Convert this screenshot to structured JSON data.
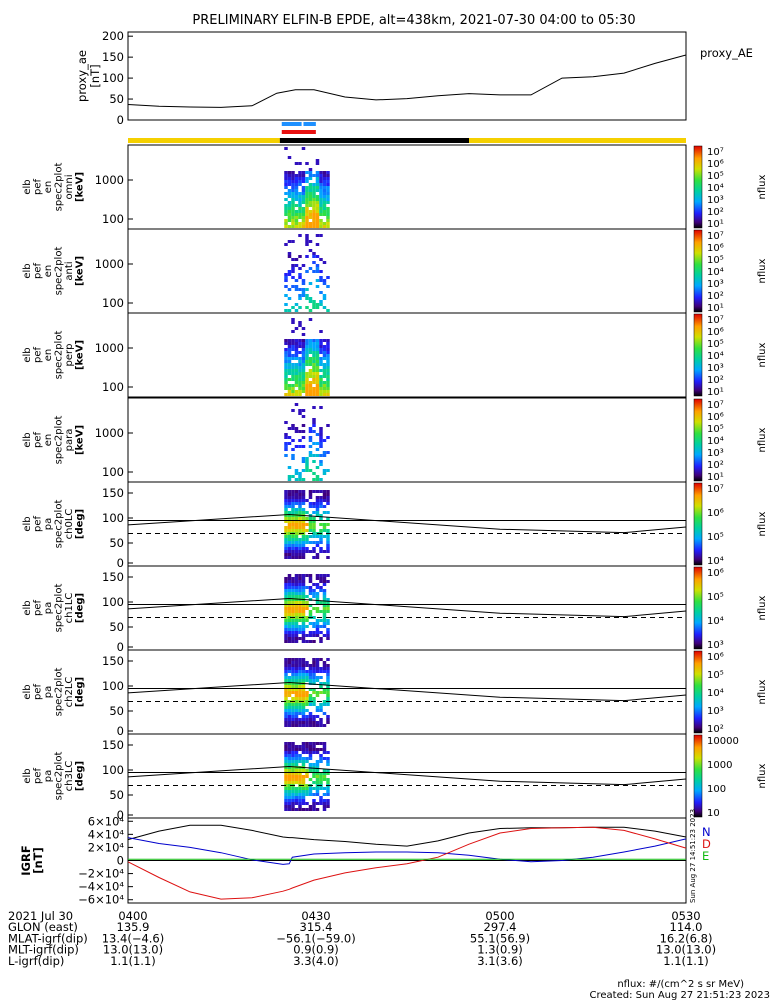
{
  "title": "PRELIMINARY ELFIN-B EPDE, alt=438km, 2021-07-30 04:00 to 05:30",
  "colors": {
    "state_yellow": "#f5d000",
    "state_black": "#000000",
    "bar_blue": "#1e90ff",
    "bar_red": "#e81010",
    "igrf_N": "#0000cc",
    "igrf_D": "#dd1111",
    "igrf_E": "#11bb11"
  },
  "chart_data": [
    {
      "type": "line",
      "panel": "proxy_ae",
      "ylabel_lines": [
        "proxy_ae",
        "[nT]"
      ],
      "legend": "proxy_AE",
      "ylim": [
        0,
        210
      ],
      "yticks": [
        "200",
        "150",
        "100",
        "50",
        "0"
      ],
      "ytick_values": [
        200,
        150,
        100,
        50,
        0
      ],
      "x_minutes": [
        0,
        5,
        10,
        15,
        20,
        24,
        27,
        30,
        35,
        40,
        45,
        50,
        55,
        60,
        65,
        70,
        75,
        80,
        85,
        90
      ],
      "y": [
        37,
        33,
        31,
        30,
        34,
        64,
        72,
        72,
        55,
        48,
        51,
        58,
        63,
        60,
        60,
        100,
        103,
        112,
        135,
        155
      ]
    },
    {
      "type": "heatmap",
      "panel": "spec_omni",
      "ylabel_lines": [
        "elb",
        "pef",
        "en",
        "spec2plot",
        "omni",
        "[keV]"
      ],
      "yticks": [
        "1000",
        "100"
      ],
      "cbar_ticks": [
        "10⁷",
        "10⁶",
        "10⁵",
        "10⁴",
        "10³",
        "10²",
        "10¹"
      ],
      "cbar_label": "nflux"
    },
    {
      "type": "heatmap",
      "panel": "spec_anti",
      "ylabel_lines": [
        "elb",
        "pef",
        "en",
        "spec2plot",
        "anti",
        "[keV]"
      ],
      "yticks": [
        "1000",
        "100"
      ],
      "cbar_ticks": [
        "10⁷",
        "10⁶",
        "10⁵",
        "10⁴",
        "10³",
        "10²",
        "10¹"
      ],
      "cbar_label": "nflux"
    },
    {
      "type": "heatmap",
      "panel": "spec_perp",
      "ylabel_lines": [
        "elb",
        "pef",
        "en",
        "spec2plot",
        "perp",
        "[keV]"
      ],
      "yticks": [
        "1000",
        "100"
      ],
      "cbar_ticks": [
        "10⁷",
        "10⁶",
        "10⁵",
        "10⁴",
        "10³",
        "10²",
        "10¹"
      ],
      "cbar_label": "nflux"
    },
    {
      "type": "heatmap",
      "panel": "spec_para",
      "ylabel_lines": [
        "elb",
        "pef",
        "en",
        "spec2plot",
        "para",
        "[keV]"
      ],
      "yticks": [
        "1000",
        "100"
      ],
      "cbar_ticks": [
        "10⁷",
        "10⁶",
        "10⁵",
        "10⁴",
        "10³",
        "10²",
        "10¹"
      ],
      "cbar_label": "nflux"
    },
    {
      "type": "heatmap",
      "panel": "ch0LC",
      "ylabel_lines": [
        "elb",
        "pef",
        "pa",
        "spec2plot",
        "ch0LC",
        "[deg]"
      ],
      "yticks": [
        "150",
        "100",
        "50",
        "0"
      ],
      "cbar_ticks": [
        "10⁷",
        "10⁶",
        "10⁵",
        "10⁴"
      ],
      "cbar_label": "nflux"
    },
    {
      "type": "heatmap",
      "panel": "ch1LC",
      "ylabel_lines": [
        "elb",
        "pef",
        "pa",
        "spec2plot",
        "ch1LC",
        "[deg]"
      ],
      "yticks": [
        "150",
        "100",
        "50",
        "0"
      ],
      "cbar_ticks": [
        "10⁶",
        "10⁵",
        "10⁴",
        "10³"
      ],
      "cbar_label": "nflux"
    },
    {
      "type": "heatmap",
      "panel": "ch2LC",
      "ylabel_lines": [
        "elb",
        "pef",
        "pa",
        "spec2plot",
        "ch2LC",
        "[deg]"
      ],
      "yticks": [
        "150",
        "100",
        "50",
        "0"
      ],
      "cbar_ticks": [
        "10⁶",
        "10⁵",
        "10⁴",
        "10³",
        "10²"
      ],
      "cbar_label": "nflux"
    },
    {
      "type": "heatmap",
      "panel": "ch3LC",
      "ylabel_lines": [
        "elb",
        "pef",
        "pa",
        "spec2plot",
        "ch3LC",
        "[deg]"
      ],
      "yticks": [
        "150",
        "100",
        "50",
        "0"
      ],
      "cbar_ticks": [
        "10000",
        "1000",
        "100",
        "10"
      ],
      "cbar_label": "nflux"
    },
    {
      "type": "line",
      "panel": "igrf",
      "ylabel_lines": [
        "IGRF",
        "[nT]"
      ],
      "ylim": [
        -65000,
        65000
      ],
      "yticks": [
        "6×10⁴",
        "4×10⁴",
        "2×10⁴",
        "0",
        "−2×10⁴",
        "−4×10⁴",
        "−6×10⁴"
      ],
      "ytick_values": [
        60000,
        40000,
        20000,
        0,
        -20000,
        -40000,
        -60000
      ],
      "legend": [
        "N",
        "D",
        "E"
      ],
      "x_minutes": [
        0,
        5,
        10,
        15,
        20,
        25,
        26,
        26.5,
        30,
        35,
        40,
        45,
        50,
        55,
        60,
        65,
        70,
        75,
        80,
        85,
        90
      ],
      "series": [
        {
          "name": "black",
          "values": [
            32000,
            45000,
            54000,
            54000,
            46000,
            36000,
            35000,
            35000,
            32000,
            29000,
            25000,
            22000,
            30000,
            42000,
            49000,
            50000,
            50000,
            51000,
            51000,
            45000,
            36000
          ]
        },
        {
          "name": "N",
          "values": [
            35000,
            26000,
            20000,
            12000,
            1000,
            -6000,
            -5000,
            5000,
            10000,
            12000,
            13000,
            13000,
            12000,
            8000,
            2000,
            -2000,
            0,
            5000,
            13000,
            22000,
            33000
          ]
        },
        {
          "name": "D",
          "values": [
            -2000,
            -26000,
            -48000,
            -59000,
            -57000,
            -47000,
            -44000,
            -42000,
            -30000,
            -19000,
            -11000,
            -5000,
            5000,
            25000,
            42000,
            49000,
            50000,
            51000,
            46000,
            33000,
            19000
          ]
        },
        {
          "name": "E",
          "values": [
            2000,
            2000,
            2000,
            2000,
            2000,
            2000,
            2000,
            2000,
            2000,
            2000,
            2000,
            2000,
            2000,
            2000,
            2000,
            2000,
            2000,
            2000,
            2000,
            2000,
            2000
          ]
        }
      ],
      "side_text": "Sun Aug 27 14:51:23 2023"
    }
  ],
  "footer": {
    "rows": [
      [
        "2021 Jul 30",
        "0400",
        "0430",
        "0500",
        "0530"
      ],
      [
        "GLON (east)",
        "135.9",
        "315.4",
        "297.4",
        "114.0"
      ],
      [
        "MLAT-igrf(dip)",
        "13.4(−4.6)",
        "−56.1(−59.0)",
        "55.1(56.9)",
        "16.2(6.8)"
      ],
      [
        "MLT-igrf(dip)",
        "13.0(13.0)",
        "0.9(0.9)",
        "1.3(0.9)",
        "13.0(13.0)"
      ],
      [
        "L-igrf(dip)",
        "1.1(1.1)",
        "3.3(4.0)",
        "3.1(3.6)",
        "1.1(1.1)"
      ]
    ],
    "units": "nflux: #/(cm^2 s sr MeV)",
    "created": "Created: Sun Aug 27 21:51:23 2023"
  }
}
